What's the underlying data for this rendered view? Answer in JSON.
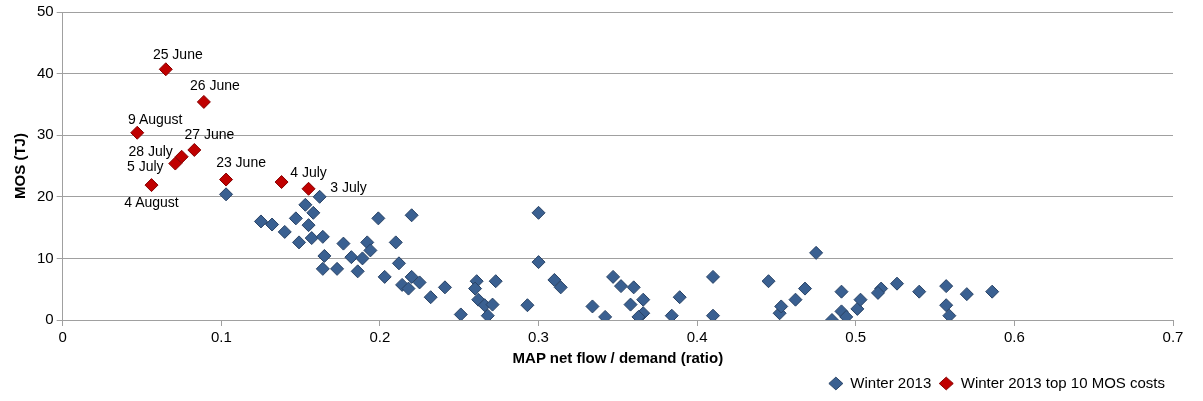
{
  "chart_data": {
    "type": "scatter",
    "xlabel": "MAP net flow / demand (ratio)",
    "ylabel": "MOS (TJ)",
    "xlim": [
      0,
      0.7
    ],
    "xticks": [
      0,
      0.1,
      0.2,
      0.3,
      0.4,
      0.5,
      0.6,
      0.7
    ],
    "ylim": [
      0,
      50
    ],
    "yticks": [
      0,
      10,
      20,
      30,
      40,
      50
    ],
    "grid": "y",
    "legend": "bottom right",
    "marker": "diamond",
    "series": [
      {
        "name": "Winter 2013",
        "color": "#3a6091",
        "x": [
          0.103,
          0.125,
          0.132,
          0.14,
          0.147,
          0.149,
          0.153,
          0.158,
          0.162,
          0.155,
          0.157,
          0.164,
          0.165,
          0.164,
          0.173,
          0.177,
          0.182,
          0.186,
          0.189,
          0.192,
          0.194,
          0.199,
          0.203,
          0.21,
          0.212,
          0.214,
          0.218,
          0.22,
          0.22,
          0.225,
          0.232,
          0.241,
          0.251,
          0.261,
          0.26,
          0.262,
          0.266,
          0.268,
          0.271,
          0.273,
          0.293,
          0.3,
          0.3,
          0.31,
          0.314,
          0.334,
          0.342,
          0.347,
          0.352,
          0.358,
          0.36,
          0.366,
          0.366,
          0.363,
          0.384,
          0.389,
          0.41,
          0.41,
          0.445,
          0.452,
          0.453,
          0.462,
          0.468,
          0.475,
          0.485,
          0.491,
          0.491,
          0.494,
          0.501,
          0.503,
          0.516,
          0.514,
          0.526,
          0.54,
          0.557,
          0.557,
          0.559,
          0.57,
          0.586
        ],
        "values": [
          20.4,
          16.0,
          15.5,
          14.3,
          16.5,
          12.6,
          18.7,
          17.4,
          20.0,
          15.4,
          13.3,
          13.5,
          10.4,
          8.3,
          8.3,
          12.4,
          10.2,
          7.9,
          10.0,
          12.6,
          11.3,
          16.5,
          7.0,
          12.6,
          9.2,
          5.7,
          5.1,
          7.0,
          17.0,
          6.1,
          3.7,
          5.3,
          0.9,
          6.3,
          5.1,
          3.3,
          2.4,
          0.7,
          2.5,
          6.3,
          2.4,
          17.4,
          9.4,
          6.5,
          5.3,
          2.2,
          0.5,
          7.0,
          5.5,
          2.5,
          5.3,
          3.3,
          1.1,
          0.5,
          0.7,
          3.7,
          7.0,
          0.7,
          6.3,
          1.1,
          2.2,
          3.3,
          5.1,
          10.9,
          0,
          4.6,
          1.4,
          0.5,
          1.8,
          3.3,
          5.1,
          4.4,
          5.9,
          4.6,
          5.5,
          2.4,
          0.7,
          4.2,
          4.6
        ]
      },
      {
        "name": "Winter 2013 top 10 MOS costs",
        "color": "#c00000",
        "x": [
          0.065,
          0.089,
          0.047,
          0.083,
          0.075,
          0.071,
          0.056,
          0.103,
          0.138,
          0.155
        ],
        "values": [
          40.7,
          35.4,
          30.4,
          27.6,
          26.5,
          25.4,
          21.9,
          22.8,
          22.4,
          21.3
        ],
        "value_labels": [
          "25 June",
          "26 June",
          "9 August",
          "27 June",
          "28 July",
          "5 July",
          "4 August",
          "23 June",
          "4 July",
          "3 July"
        ]
      }
    ]
  }
}
